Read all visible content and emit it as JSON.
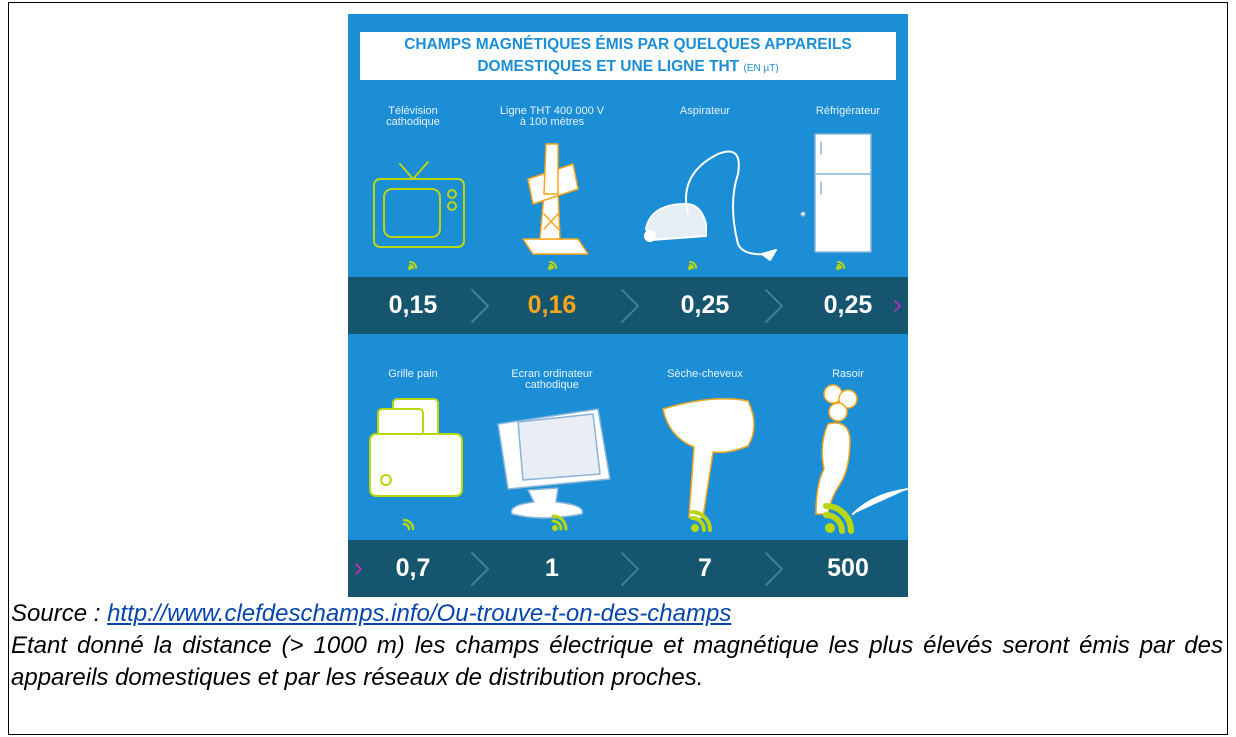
{
  "infographic": {
    "title_line1": "CHAMPS MAGNÉTIQUES ÉMIS PAR QUELQUES APPAREILS",
    "title_line2": "DOMESTIQUES ET UNE LIGNE THT",
    "unit": "(EN µT)",
    "rows": [
      [
        {
          "label": [
            "Télévision",
            "cathodique"
          ],
          "value": "0,15"
        },
        {
          "label": [
            "Ligne THT 400 000 V",
            "à 100 mètres"
          ],
          "value": "0,16"
        },
        {
          "label": [
            "Aspirateur"
          ],
          "value": "0,25"
        },
        {
          "label": [
            "Réfrigérateur"
          ],
          "value": "0,25"
        }
      ],
      [
        {
          "label": [
            "Grille pain"
          ],
          "value": "0,7"
        },
        {
          "label": [
            "Ecran ordinateur",
            "cathodique"
          ],
          "value": "1"
        },
        {
          "label": [
            "Sèche-cheveux"
          ],
          "value": "7"
        },
        {
          "label": [
            "Rasoir"
          ],
          "value": "500"
        }
      ]
    ]
  },
  "caption": {
    "source_label": "Source :",
    "source_url": "http://www.clefdeschamps.info/Ou-trouve-t-on-des-champs",
    "text": "Etant donné la distance (> 1000 m) les champs électrique et magnétique les plus élevés seront émis par des appareils domestiques et par les réseaux de distribution proches."
  }
}
